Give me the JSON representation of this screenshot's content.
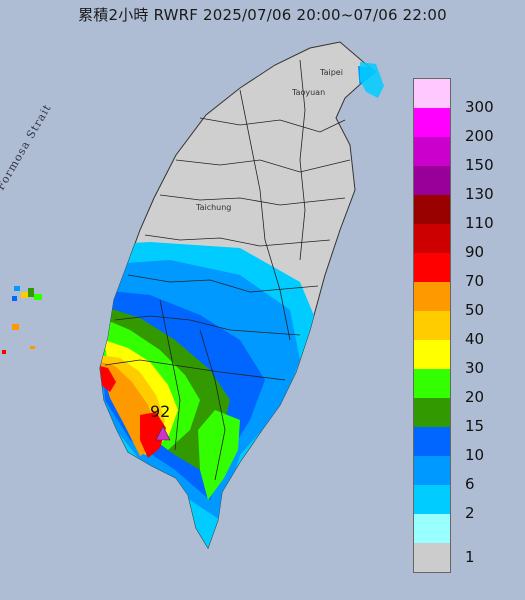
{
  "title": "累積2小時 RWRF 2025/07/06 20:00~07/06 22:00",
  "map": {
    "strait_label": "Formosa Strait",
    "places": [
      "Taipei",
      "Taoyuan",
      "Taichung"
    ],
    "max_value_label": "92"
  },
  "legend": {
    "labels": [
      "300",
      "200",
      "150",
      "130",
      "110",
      "90",
      "70",
      "50",
      "40",
      "30",
      "20",
      "15",
      "10",
      "6",
      "2",
      "1"
    ],
    "colors": [
      "#ffc8ff",
      "#ff00ff",
      "#cc00cc",
      "#990099",
      "#990000",
      "#cc0000",
      "#ff0000",
      "#ff9900",
      "#ffcc00",
      "#ffff00",
      "#33ff00",
      "#339900",
      "#0066ff",
      "#0099ff",
      "#00ccff",
      "#99ffff",
      "#cccccc"
    ]
  }
}
